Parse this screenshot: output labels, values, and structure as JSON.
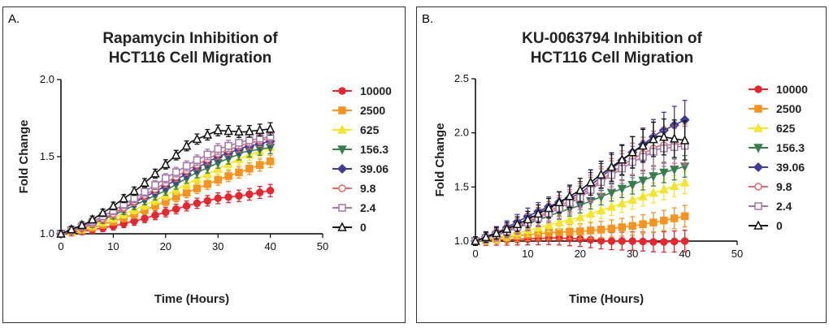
{
  "chart_data": [
    {
      "type": "line",
      "panel_label": "A.",
      "title_line1": "Rapamycin Inhibition of",
      "title_line2": "HCT116 Cell Migration",
      "xlabel": "Time (Hours)",
      "ylabel": "Fold Change",
      "xlim": [
        0,
        50
      ],
      "ylim": [
        1.0,
        2.0
      ],
      "xticks": [
        "0",
        "10",
        "20",
        "30",
        "40",
        "50"
      ],
      "yticks": [
        "1.0",
        "1.5",
        "2.0"
      ],
      "ytick_values": [
        1.0,
        1.5,
        2.0
      ],
      "legend_position": "right",
      "series": [
        {
          "name": "10000",
          "color": "#e8262d",
          "marker": "circle",
          "x": [
            0,
            5,
            10,
            15,
            20,
            25,
            30,
            35,
            40
          ],
          "values": [
            1.0,
            1.02,
            1.05,
            1.09,
            1.14,
            1.19,
            1.23,
            1.25,
            1.28
          ]
        },
        {
          "name": "2500",
          "color": "#f7931e",
          "marker": "square",
          "x": [
            0,
            5,
            10,
            15,
            20,
            25,
            30,
            35,
            40
          ],
          "values": [
            1.0,
            1.03,
            1.08,
            1.14,
            1.21,
            1.28,
            1.35,
            1.41,
            1.47
          ]
        },
        {
          "name": "625",
          "color": "#f5e52a",
          "marker": "triangle-up",
          "x": [
            0,
            5,
            10,
            15,
            20,
            25,
            30,
            35,
            40
          ],
          "values": [
            1.0,
            1.04,
            1.1,
            1.17,
            1.25,
            1.34,
            1.42,
            1.5,
            1.56
          ]
        },
        {
          "name": "156.3",
          "color": "#3a7d4c",
          "marker": "triangle-down",
          "x": [
            0,
            5,
            10,
            15,
            20,
            25,
            30,
            35,
            40
          ],
          "values": [
            1.0,
            1.05,
            1.12,
            1.2,
            1.28,
            1.38,
            1.46,
            1.53,
            1.56
          ]
        },
        {
          "name": "39.06",
          "color": "#3f3d96",
          "marker": "diamond",
          "x": [
            0,
            5,
            10,
            15,
            20,
            25,
            30,
            35,
            40
          ],
          "values": [
            1.0,
            1.05,
            1.13,
            1.22,
            1.31,
            1.41,
            1.5,
            1.56,
            1.6
          ]
        },
        {
          "name": "9.8",
          "color": "#e36a6a",
          "marker": "circle-open",
          "x": [
            0,
            5,
            10,
            15,
            20,
            25,
            30,
            35,
            40
          ],
          "values": [
            1.0,
            1.05,
            1.13,
            1.23,
            1.33,
            1.43,
            1.52,
            1.58,
            1.62
          ]
        },
        {
          "name": "2.4",
          "color": "#a576a8",
          "marker": "square-open",
          "x": [
            0,
            5,
            10,
            15,
            20,
            25,
            30,
            35,
            40
          ],
          "values": [
            1.0,
            1.06,
            1.15,
            1.25,
            1.36,
            1.46,
            1.55,
            1.6,
            1.63
          ]
        },
        {
          "name": "0",
          "color": "#111111",
          "marker": "triangle-open",
          "x": [
            0,
            5,
            10,
            15,
            20,
            25,
            30,
            35,
            40
          ],
          "values": [
            1.0,
            1.07,
            1.18,
            1.3,
            1.45,
            1.6,
            1.67,
            1.66,
            1.68
          ]
        }
      ]
    },
    {
      "type": "line",
      "panel_label": "B.",
      "title_line1": "KU-0063794 Inhibition of",
      "title_line2": "HCT116 Cell Migration",
      "xlabel": "Time (Hours)",
      "ylabel": "Fold Change",
      "xlim": [
        0,
        50
      ],
      "ylim": [
        1.0,
        2.5
      ],
      "xticks": [
        "0",
        "10",
        "20",
        "30",
        "40",
        "50"
      ],
      "yticks": [
        "1.0",
        "1.5",
        "2.0",
        "2.5"
      ],
      "ytick_values": [
        1.0,
        1.5,
        2.0,
        2.5
      ],
      "legend_position": "right",
      "series": [
        {
          "name": "10000",
          "color": "#e8262d",
          "marker": "circle",
          "x": [
            0,
            5,
            10,
            15,
            20,
            25,
            30,
            35,
            40
          ],
          "values": [
            1.0,
            1.01,
            1.02,
            1.03,
            1.02,
            1.0,
            1.0,
            0.99,
            1.0
          ]
        },
        {
          "name": "2500",
          "color": "#f7931e",
          "marker": "square",
          "x": [
            0,
            5,
            10,
            15,
            20,
            25,
            30,
            35,
            40
          ],
          "values": [
            1.0,
            1.03,
            1.06,
            1.08,
            1.09,
            1.11,
            1.14,
            1.18,
            1.23
          ]
        },
        {
          "name": "625",
          "color": "#f5e52a",
          "marker": "triangle-up",
          "x": [
            0,
            5,
            10,
            15,
            20,
            25,
            30,
            35,
            40
          ],
          "values": [
            1.0,
            1.04,
            1.1,
            1.16,
            1.22,
            1.3,
            1.38,
            1.46,
            1.54
          ]
        },
        {
          "name": "156.3",
          "color": "#3a7d4c",
          "marker": "triangle-down",
          "x": [
            0,
            5,
            10,
            15,
            20,
            25,
            30,
            35,
            40
          ],
          "values": [
            1.0,
            1.07,
            1.16,
            1.25,
            1.33,
            1.43,
            1.52,
            1.62,
            1.69
          ]
        },
        {
          "name": "39.06",
          "color": "#3f3d96",
          "marker": "diamond",
          "x": [
            0,
            5,
            10,
            15,
            20,
            25,
            30,
            35,
            40
          ],
          "values": [
            1.0,
            1.1,
            1.23,
            1.34,
            1.44,
            1.63,
            1.82,
            2.0,
            2.12
          ]
        },
        {
          "name": "9.8",
          "color": "#e36a6a",
          "marker": "circle-open",
          "x": [
            0,
            5,
            10,
            15,
            20,
            25,
            30,
            35,
            40
          ],
          "values": [
            1.0,
            1.08,
            1.18,
            1.3,
            1.42,
            1.6,
            1.76,
            1.88,
            1.9
          ]
        },
        {
          "name": "2.4",
          "color": "#a576a8",
          "marker": "square-open",
          "x": [
            0,
            5,
            10,
            15,
            20,
            25,
            30,
            35,
            40
          ],
          "values": [
            1.0,
            1.07,
            1.17,
            1.28,
            1.4,
            1.58,
            1.73,
            1.85,
            1.88
          ]
        },
        {
          "name": "0",
          "color": "#111111",
          "marker": "triangle-open",
          "x": [
            0,
            5,
            10,
            15,
            20,
            25,
            30,
            35,
            40
          ],
          "values": [
            1.0,
            1.09,
            1.2,
            1.33,
            1.47,
            1.65,
            1.82,
            1.97,
            1.93
          ]
        }
      ]
    }
  ]
}
